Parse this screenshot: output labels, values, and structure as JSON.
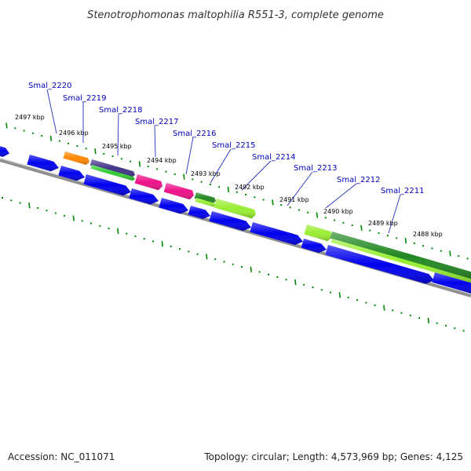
{
  "title": "Stenotrophomonas maltophilia R551-3, complete genome",
  "accession": "Accession: NC_011071",
  "summary": "Topology: circular; Length: 4,573,969 bp; Genes: 4,125",
  "colors": {
    "cds": "#0000ee",
    "backbone": "#888888",
    "ticks": "#008800",
    "label": "#0000bb",
    "leader": "#2233bb",
    "orange": "#ff8800",
    "indigo": "#443388",
    "green_stripe": "#33cc33",
    "magenta": "#ee1188",
    "dark_green": "#228822",
    "lime": "#99ee33"
  },
  "gene_labels": [
    "Smal_2220",
    "Smal_2219",
    "Smal_2218",
    "Smal_2217",
    "Smal_2216",
    "Smal_2215",
    "Smal_2214",
    "Smal_2213",
    "Smal_2212",
    "Smal_2211"
  ],
  "tick_labels": [
    "2497 kbp",
    "2496 kbp",
    "2495 kbp",
    "2494 kbp",
    "2493 kbp",
    "2492 kbp",
    "2491 kbp",
    "2490 kbp",
    "2489 kbp",
    "2488 kbp"
  ]
}
